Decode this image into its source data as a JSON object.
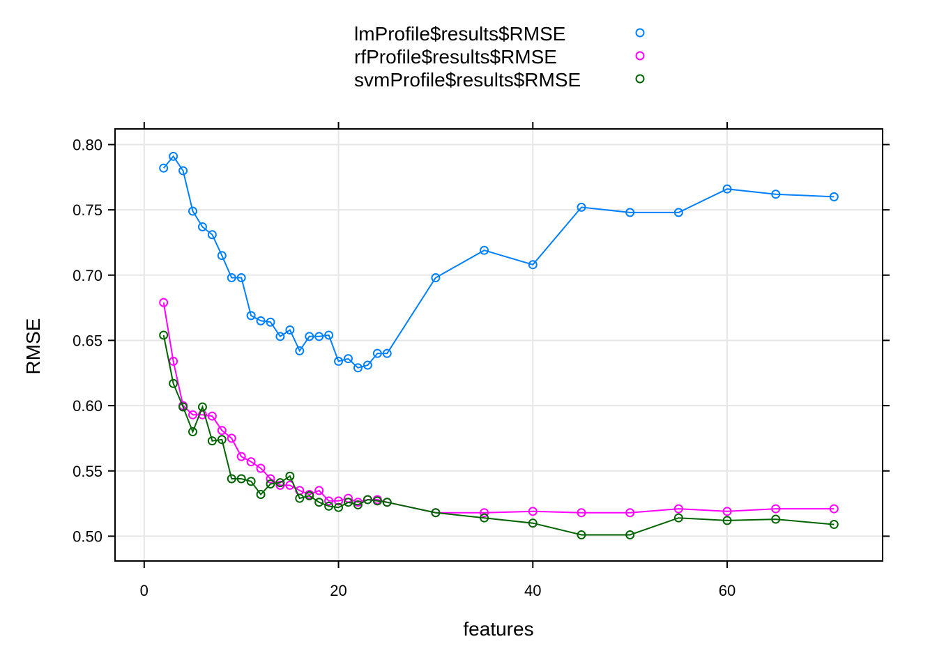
{
  "chart_data": {
    "type": "line",
    "title": "",
    "xlabel": "features",
    "ylabel": "RMSE",
    "xlim": [
      -3,
      76
    ],
    "ylim": [
      0.481,
      0.812
    ],
    "xticks": [
      0,
      20,
      40,
      60
    ],
    "xtick_labels": [
      "0",
      "20",
      "40",
      "60"
    ],
    "yticks": [
      0.5,
      0.55,
      0.6,
      0.65,
      0.7,
      0.75,
      0.8
    ],
    "ytick_labels": [
      "0.50",
      "0.55",
      "0.60",
      "0.65",
      "0.70",
      "0.75",
      "0.80"
    ],
    "grid": true,
    "legend_position": "top",
    "series": [
      {
        "name": "lmProfile$results$RMSE",
        "color": "#0080ff",
        "x": [
          2,
          3,
          4,
          5,
          6,
          7,
          8,
          9,
          10,
          11,
          12,
          13,
          14,
          15,
          16,
          17,
          18,
          19,
          20,
          21,
          22,
          23,
          24,
          25,
          30,
          35,
          40,
          45,
          50,
          55,
          60,
          65,
          71
        ],
        "values": [
          0.782,
          0.791,
          0.78,
          0.749,
          0.737,
          0.731,
          0.715,
          0.698,
          0.698,
          0.669,
          0.665,
          0.664,
          0.653,
          0.658,
          0.642,
          0.653,
          0.653,
          0.654,
          0.634,
          0.636,
          0.629,
          0.631,
          0.64,
          0.64,
          0.698,
          0.719,
          0.708,
          0.752,
          0.748,
          0.748,
          0.766,
          0.762,
          0.76
        ]
      },
      {
        "name": "rfProfile$results$RMSE",
        "color": "#ff00ff",
        "x": [
          2,
          3,
          4,
          5,
          6,
          7,
          8,
          9,
          10,
          11,
          12,
          13,
          14,
          15,
          16,
          17,
          18,
          19,
          20,
          21,
          22,
          23,
          24,
          25,
          30,
          35,
          40,
          45,
          50,
          55,
          60,
          65,
          71
        ],
        "values": [
          0.679,
          0.634,
          0.6,
          0.593,
          0.593,
          0.592,
          0.581,
          0.575,
          0.561,
          0.557,
          0.552,
          0.544,
          0.539,
          0.539,
          0.535,
          0.532,
          0.535,
          0.527,
          0.527,
          0.529,
          0.526,
          0.528,
          0.528,
          0.526,
          0.518,
          0.518,
          0.519,
          0.518,
          0.518,
          0.521,
          0.519,
          0.521,
          0.521
        ]
      },
      {
        "name": "svmProfile$results$RMSE",
        "color": "#006400",
        "x": [
          2,
          3,
          4,
          5,
          6,
          7,
          8,
          9,
          10,
          11,
          12,
          13,
          14,
          15,
          16,
          17,
          18,
          19,
          20,
          21,
          22,
          23,
          24,
          25,
          30,
          35,
          40,
          45,
          50,
          55,
          60,
          65,
          71
        ],
        "values": [
          0.654,
          0.617,
          0.599,
          0.58,
          0.599,
          0.573,
          0.574,
          0.544,
          0.544,
          0.542,
          0.532,
          0.54,
          0.541,
          0.546,
          0.529,
          0.531,
          0.526,
          0.523,
          0.522,
          0.526,
          0.524,
          0.528,
          0.527,
          0.526,
          0.518,
          0.514,
          0.51,
          0.501,
          0.501,
          0.514,
          0.512,
          0.513,
          0.509
        ]
      }
    ]
  }
}
